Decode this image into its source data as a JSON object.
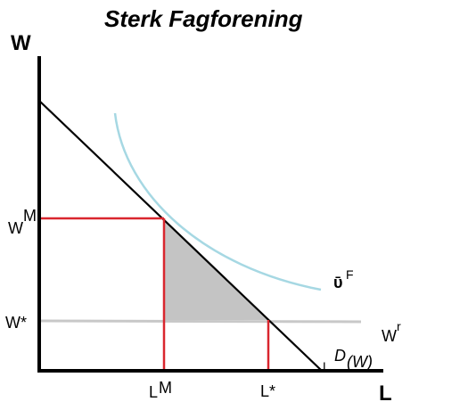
{
  "title": "Sterk Fagforening",
  "axes": {
    "y_name": "W",
    "x_name": "L"
  },
  "labels": {
    "wm_base": "W",
    "wm_sup": "M",
    "wstar": "W*",
    "lm_base": "L",
    "lm_sup": "M",
    "lstar": "L*",
    "uf_base": "ῡ",
    "uf_sup": "F",
    "wr_base": "W",
    "wr_sup": "r",
    "ld_base": "L",
    "ld_sup": "D",
    "ld_arg": "(W)"
  },
  "colors": {
    "axis": "#000000",
    "demand": "#000000",
    "indifference": "#a6d8e3",
    "reservation_wage": "#c8c8c8",
    "guide_lines": "#d9262e",
    "shaded_area": "#c4c4c4"
  }
}
